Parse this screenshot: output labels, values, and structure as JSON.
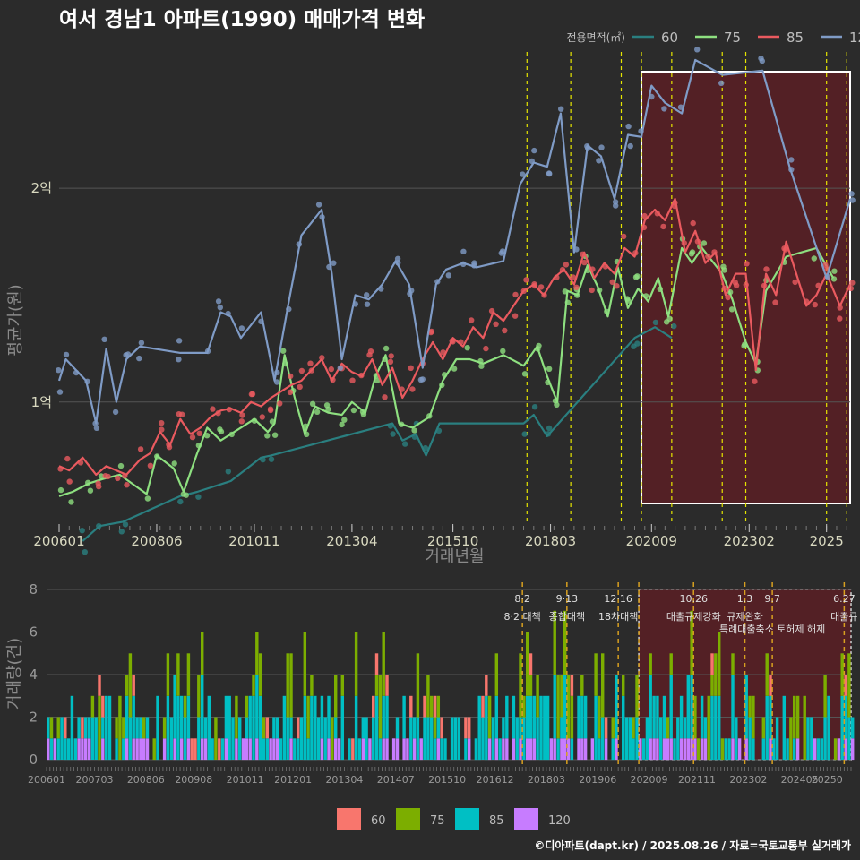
{
  "title": "여서 경남1 아파트(1990) 매매가격 변화",
  "caption": "©디아파트(dapt.kr) / 2025.08.26 / 자료=국토교통부 실거래가",
  "colors": {
    "s60": "#2a7f80",
    "s75": "#8ee080",
    "s85": "#ea5a5f",
    "s120": "#7f9bc6",
    "b60": "#f8766d",
    "b75": "#7cae00",
    "b85": "#00bfc4",
    "b120": "#c77cff",
    "event": "#e6e600",
    "event_low": "#d8a020",
    "highlight": "#5a1f24"
  },
  "chart_data": [
    {
      "type": "line",
      "xlabel": "거래년월",
      "ylabel": "평균가(원)",
      "x_range": [
        "2006-01",
        "2025-08"
      ],
      "ylim": [
        0.45,
        2.65
      ],
      "y_unit": "억",
      "y_ticks": [
        {
          "v": 1,
          "label": "1억"
        },
        {
          "v": 2,
          "label": "2억"
        }
      ],
      "x_ticks": [
        "200601",
        "200806",
        "201011",
        "201304",
        "201510",
        "201803",
        "202009",
        "202302",
        "2025"
      ],
      "legend_title": "전용면적(㎡)",
      "legend_position": "top-right",
      "highlight_range": [
        "2020-06",
        "2025-08"
      ],
      "events": [
        "2017-08",
        "2018-09",
        "2019-12",
        "2020-06",
        "2021-03",
        "2022-06",
        "2023-01",
        "2025-01",
        "2025-07"
      ],
      "series": [
        {
          "name": "60",
          "color_key": "s60",
          "points": [
            [
              "2006-08",
              0.35
            ],
            [
              "2007-01",
              0.42
            ],
            [
              "2007-08",
              0.44
            ],
            [
              "2009-01",
              0.56
            ],
            [
              "2009-06",
              0.58
            ],
            [
              "2010-04",
              0.63
            ],
            [
              "2011-01",
              0.74
            ],
            [
              "2011-04",
              0.75
            ],
            [
              "2014-04",
              0.9
            ],
            [
              "2014-07",
              0.82
            ],
            [
              "2014-11",
              0.85
            ],
            [
              "2015-02",
              0.75
            ],
            [
              "2015-06",
              0.9
            ],
            [
              "2017-07",
              0.9
            ],
            [
              "2017-10",
              0.94
            ],
            [
              "2018-02",
              0.84
            ],
            [
              "2020-04",
              1.3
            ],
            [
              "2020-10",
              1.35
            ],
            [
              "2021-03",
              1.3
            ]
          ]
        },
        {
          "name": "75",
          "color_key": "s75",
          "points": [
            [
              "2006-01",
              0.56
            ],
            [
              "2006-05",
              0.58
            ],
            [
              "2006-10",
              0.62
            ],
            [
              "2007-02",
              0.64
            ],
            [
              "2007-07",
              0.66
            ],
            [
              "2008-03",
              0.57
            ],
            [
              "2008-06",
              0.75
            ],
            [
              "2008-11",
              0.69
            ],
            [
              "2009-02",
              0.58
            ],
            [
              "2009-06",
              0.76
            ],
            [
              "2009-09",
              0.88
            ],
            [
              "2010-01",
              0.82
            ],
            [
              "2010-05",
              0.86
            ],
            [
              "2010-11",
              0.92
            ],
            [
              "2011-03",
              0.86
            ],
            [
              "2011-05",
              0.9
            ],
            [
              "2011-08",
              1.22
            ],
            [
              "2011-11",
              1.02
            ],
            [
              "2012-02",
              0.85
            ],
            [
              "2012-05",
              0.98
            ],
            [
              "2012-09",
              0.95
            ],
            [
              "2013-01",
              0.94
            ],
            [
              "2013-04",
              1.0
            ],
            [
              "2013-08",
              0.95
            ],
            [
              "2013-11",
              1.12
            ],
            [
              "2014-02",
              1.22
            ],
            [
              "2014-06",
              0.9
            ],
            [
              "2014-10",
              0.88
            ],
            [
              "2015-03",
              0.93
            ],
            [
              "2015-07",
              1.1
            ],
            [
              "2015-11",
              1.2
            ],
            [
              "2016-03",
              1.2
            ],
            [
              "2016-07",
              1.18
            ],
            [
              "2017-01",
              1.22
            ],
            [
              "2017-07",
              1.17
            ],
            [
              "2017-11",
              1.26
            ],
            [
              "2018-02",
              1.12
            ],
            [
              "2018-05",
              1.0
            ],
            [
              "2018-08",
              1.52
            ],
            [
              "2018-11",
              1.5
            ],
            [
              "2019-02",
              1.64
            ],
            [
              "2019-05",
              1.54
            ],
            [
              "2019-08",
              1.4
            ],
            [
              "2019-11",
              1.63
            ],
            [
              "2020-02",
              1.44
            ],
            [
              "2020-05",
              1.53
            ],
            [
              "2020-08",
              1.47
            ],
            [
              "2020-11",
              1.58
            ],
            [
              "2021-02",
              1.4
            ],
            [
              "2021-06",
              1.72
            ],
            [
              "2021-09",
              1.65
            ],
            [
              "2021-12",
              1.72
            ],
            [
              "2022-06",
              1.6
            ],
            [
              "2022-09",
              1.48
            ],
            [
              "2023-01",
              1.28
            ],
            [
              "2023-04",
              1.18
            ],
            [
              "2023-07",
              1.52
            ],
            [
              "2024-01",
              1.68
            ],
            [
              "2024-10",
              1.72
            ],
            [
              "2025-03",
              1.58
            ]
          ]
        },
        {
          "name": "85",
          "color_key": "s85",
          "points": [
            [
              "2006-01",
              0.7
            ],
            [
              "2006-04",
              0.68
            ],
            [
              "2006-08",
              0.74
            ],
            [
              "2006-12",
              0.66
            ],
            [
              "2007-03",
              0.7
            ],
            [
              "2007-06",
              0.68
            ],
            [
              "2007-09",
              0.66
            ],
            [
              "2008-01",
              0.73
            ],
            [
              "2008-04",
              0.76
            ],
            [
              "2008-07",
              0.86
            ],
            [
              "2008-10",
              0.8
            ],
            [
              "2009-01",
              0.92
            ],
            [
              "2009-04",
              0.85
            ],
            [
              "2009-07",
              0.88
            ],
            [
              "2009-10",
              0.93
            ],
            [
              "2010-01",
              0.96
            ],
            [
              "2010-04",
              0.97
            ],
            [
              "2010-07",
              0.95
            ],
            [
              "2010-10",
              1.0
            ],
            [
              "2011-01",
              0.98
            ],
            [
              "2011-04",
              1.02
            ],
            [
              "2011-07",
              1.05
            ],
            [
              "2011-10",
              1.08
            ],
            [
              "2012-01",
              1.1
            ],
            [
              "2012-04",
              1.15
            ],
            [
              "2012-07",
              1.2
            ],
            [
              "2012-10",
              1.1
            ],
            [
              "2013-01",
              1.18
            ],
            [
              "2013-04",
              1.14
            ],
            [
              "2013-07",
              1.12
            ],
            [
              "2013-10",
              1.2
            ],
            [
              "2014-01",
              1.08
            ],
            [
              "2014-04",
              1.16
            ],
            [
              "2014-07",
              1.02
            ],
            [
              "2014-10",
              1.1
            ],
            [
              "2015-01",
              1.2
            ],
            [
              "2015-04",
              1.28
            ],
            [
              "2015-07",
              1.2
            ],
            [
              "2015-10",
              1.3
            ],
            [
              "2016-01",
              1.26
            ],
            [
              "2016-04",
              1.35
            ],
            [
              "2016-07",
              1.3
            ],
            [
              "2016-10",
              1.42
            ],
            [
              "2017-01",
              1.38
            ],
            [
              "2017-04",
              1.45
            ],
            [
              "2017-07",
              1.52
            ],
            [
              "2017-10",
              1.55
            ],
            [
              "2018-01",
              1.5
            ],
            [
              "2018-04",
              1.58
            ],
            [
              "2018-07",
              1.62
            ],
            [
              "2018-10",
              1.55
            ],
            [
              "2019-01",
              1.7
            ],
            [
              "2019-04",
              1.58
            ],
            [
              "2019-07",
              1.65
            ],
            [
              "2019-10",
              1.6
            ],
            [
              "2020-01",
              1.72
            ],
            [
              "2020-04",
              1.68
            ],
            [
              "2020-07",
              1.85
            ],
            [
              "2020-10",
              1.9
            ],
            [
              "2021-01",
              1.85
            ],
            [
              "2021-04",
              1.95
            ],
            [
              "2021-07",
              1.7
            ],
            [
              "2021-10",
              1.8
            ],
            [
              "2022-01",
              1.65
            ],
            [
              "2022-04",
              1.7
            ],
            [
              "2022-07",
              1.5
            ],
            [
              "2022-10",
              1.6
            ],
            [
              "2023-01",
              1.6
            ],
            [
              "2023-04",
              1.15
            ],
            [
              "2023-07",
              1.6
            ],
            [
              "2023-10",
              1.5
            ],
            [
              "2024-01",
              1.75
            ],
            [
              "2024-04",
              1.6
            ],
            [
              "2024-07",
              1.45
            ],
            [
              "2024-10",
              1.5
            ],
            [
              "2025-01",
              1.6
            ],
            [
              "2025-05",
              1.45
            ],
            [
              "2025-08",
              1.55
            ]
          ]
        },
        {
          "name": "120",
          "color_key": "s120",
          "points": [
            [
              "2006-01",
              1.1
            ],
            [
              "2006-03",
              1.2
            ],
            [
              "2006-06",
              1.15
            ],
            [
              "2006-09",
              1.1
            ],
            [
              "2006-12",
              0.9
            ],
            [
              "2007-03",
              1.25
            ],
            [
              "2007-06",
              1.0
            ],
            [
              "2007-09",
              1.2
            ],
            [
              "2008-01",
              1.26
            ],
            [
              "2009-01",
              1.23
            ],
            [
              "2009-09",
              1.23
            ],
            [
              "2010-01",
              1.42
            ],
            [
              "2010-04",
              1.4
            ],
            [
              "2010-07",
              1.3
            ],
            [
              "2011-01",
              1.42
            ],
            [
              "2011-05",
              1.1
            ],
            [
              "2011-09",
              1.45
            ],
            [
              "2012-01",
              1.78
            ],
            [
              "2012-07",
              1.9
            ],
            [
              "2012-10",
              1.6
            ],
            [
              "2013-01",
              1.2
            ],
            [
              "2013-05",
              1.5
            ],
            [
              "2013-09",
              1.48
            ],
            [
              "2014-01",
              1.55
            ],
            [
              "2014-05",
              1.66
            ],
            [
              "2014-09",
              1.55
            ],
            [
              "2015-01",
              1.16
            ],
            [
              "2015-05",
              1.55
            ],
            [
              "2015-08",
              1.62
            ],
            [
              "2016-01",
              1.65
            ],
            [
              "2016-05",
              1.63
            ],
            [
              "2017-01",
              1.66
            ],
            [
              "2017-06",
              2.02
            ],
            [
              "2017-10",
              2.12
            ],
            [
              "2018-02",
              2.1
            ],
            [
              "2018-06",
              2.35
            ],
            [
              "2018-10",
              1.7
            ],
            [
              "2019-02",
              2.2
            ],
            [
              "2019-06",
              2.15
            ],
            [
              "2019-10",
              1.95
            ],
            [
              "2020-02",
              2.25
            ],
            [
              "2020-06",
              2.24
            ],
            [
              "2020-09",
              2.48
            ],
            [
              "2021-01",
              2.4
            ],
            [
              "2021-06",
              2.35
            ],
            [
              "2021-10",
              2.6
            ],
            [
              "2022-06",
              2.53
            ],
            [
              "2023-06",
              2.55
            ],
            [
              "2024-02",
              2.1
            ],
            [
              "2025-01",
              1.58
            ],
            [
              "2025-08",
              1.95
            ]
          ]
        }
      ]
    },
    {
      "type": "bar",
      "stacked": true,
      "ylabel": "거래량(건)",
      "ylim": [
        0,
        8
      ],
      "y_ticks": [
        "0",
        "2",
        "4",
        "6",
        "8"
      ],
      "x_ticks": [
        "200601",
        "200703",
        "200806",
        "200908",
        "201011",
        "201201",
        "201304",
        "201407",
        "201510",
        "201612",
        "201803",
        "201906",
        "202009",
        "202111",
        "202302",
        "202405",
        "20250"
      ],
      "legend_position": "bottom",
      "legend": [
        "60",
        "75",
        "85",
        "120"
      ],
      "highlight_range": [
        "2020-06",
        "2025-08"
      ],
      "events": [
        {
          "x": "2017-08",
          "date": "8·2",
          "text": "8·2 대책"
        },
        {
          "x": "2018-09",
          "date": "9·13",
          "text": "종합대책"
        },
        {
          "x": "2019-12",
          "date": "12·16",
          "text": "18차대책"
        },
        {
          "x": "2020-06",
          "date": "",
          "text": ""
        },
        {
          "x": "2021-10",
          "date": "10.26",
          "text": "대출규제강화"
        },
        {
          "x": "2023-01",
          "date": "1.3",
          "text": "규제완화"
        },
        {
          "x": "2023-09",
          "date": "9.7",
          "text": "특례대출축소 토허제 해제"
        },
        {
          "x": "2025-06",
          "date": "6.27",
          "text": "대출규"
        }
      ]
    }
  ],
  "legend_bottom": [
    "60",
    "75",
    "85",
    "120"
  ]
}
